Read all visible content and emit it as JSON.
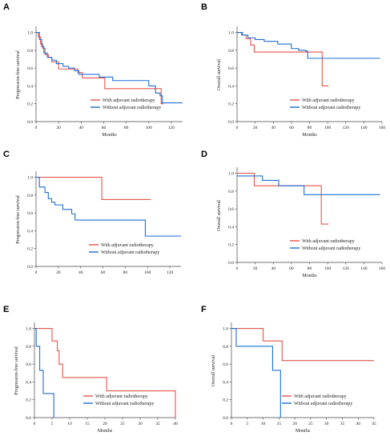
{
  "colors": {
    "with": "#e8534a",
    "without": "#1f6fd6"
  },
  "chart_data": [
    {
      "type": "line",
      "panel": "A",
      "ylabel": "Progression-free survival",
      "xlabel": "Months",
      "xlim": [
        0,
        130
      ],
      "ylim": [
        0,
        1.05
      ],
      "xticks": [
        0,
        20,
        40,
        60,
        80,
        100,
        120
      ],
      "yticks": [
        0.0,
        0.2,
        0.4,
        0.6,
        0.8,
        1.0
      ],
      "legend_position": "bottom-right",
      "series": [
        {
          "name": "With adjuvant radiotherapy",
          "color_key": "with",
          "step": true,
          "points": [
            [
              0,
              1.0
            ],
            [
              2,
              0.95
            ],
            [
              4,
              0.87
            ],
            [
              6,
              0.82
            ],
            [
              8,
              0.75
            ],
            [
              11,
              0.72
            ],
            [
              14,
              0.67
            ],
            [
              20,
              0.59
            ],
            [
              34,
              0.59
            ],
            [
              37,
              0.55
            ],
            [
              41,
              0.49
            ],
            [
              58,
              0.49
            ],
            [
              61,
              0.37
            ],
            [
              108,
              0.37
            ],
            [
              111,
              0.2
            ],
            [
              113,
              0.2
            ]
          ]
        },
        {
          "name": "Without adjuvant radiotherapy",
          "color_key": "without",
          "step": true,
          "points": [
            [
              0,
              1.0
            ],
            [
              3,
              0.92
            ],
            [
              5,
              0.84
            ],
            [
              7,
              0.77
            ],
            [
              10,
              0.72
            ],
            [
              14,
              0.69
            ],
            [
              18,
              0.65
            ],
            [
              24,
              0.62
            ],
            [
              29,
              0.6
            ],
            [
              34,
              0.57
            ],
            [
              38,
              0.53
            ],
            [
              56,
              0.5
            ],
            [
              68,
              0.46
            ],
            [
              98,
              0.46
            ],
            [
              100,
              0.4
            ],
            [
              106,
              0.32
            ],
            [
              110,
              0.29
            ],
            [
              112,
              0.21
            ],
            [
              130,
              0.21
            ]
          ]
        }
      ]
    },
    {
      "type": "line",
      "panel": "B",
      "ylabel": "Overall survival",
      "xlabel": "Months",
      "xlim": [
        0,
        160
      ],
      "ylim": [
        0,
        1.05
      ],
      "xticks": [
        0,
        20,
        40,
        60,
        80,
        100,
        120,
        140,
        160
      ],
      "yticks": [
        0.0,
        0.2,
        0.4,
        0.6,
        0.8,
        1.0
      ],
      "legend_position": "bottom-right",
      "series": [
        {
          "name": "With adjuvant radiotherapy",
          "color_key": "with",
          "step": true,
          "points": [
            [
              0,
              1.0
            ],
            [
              5,
              0.97
            ],
            [
              10,
              0.93
            ],
            [
              15,
              0.86
            ],
            [
              19,
              0.78
            ],
            [
              92,
              0.78
            ],
            [
              94,
              0.4
            ],
            [
              101,
              0.4
            ]
          ]
        },
        {
          "name": "Without adjuvant radiotherapy",
          "color_key": "without",
          "step": true,
          "points": [
            [
              0,
              1.0
            ],
            [
              6,
              0.97
            ],
            [
              12,
              0.94
            ],
            [
              20,
              0.92
            ],
            [
              30,
              0.9
            ],
            [
              45,
              0.87
            ],
            [
              60,
              0.82
            ],
            [
              68,
              0.8
            ],
            [
              76,
              0.79
            ],
            [
              78,
              0.71
            ],
            [
              158,
              0.71
            ]
          ]
        }
      ]
    },
    {
      "type": "line",
      "panel": "C",
      "ylabel": "Progression-free survival",
      "xlabel": "",
      "xlim": [
        0,
        130
      ],
      "ylim": [
        0,
        1.05
      ],
      "xticks": [
        0,
        20,
        40,
        60,
        80,
        100,
        120
      ],
      "yticks": [
        0.0,
        0.2,
        0.4,
        0.6,
        0.8,
        1.0
      ],
      "legend_position": "bottom-right",
      "series": [
        {
          "name": "With adjuvant radiotherapy",
          "color_key": "with",
          "step": true,
          "points": [
            [
              0,
              1.0
            ],
            [
              58,
              1.0
            ],
            [
              59,
              0.75
            ],
            [
              103,
              0.75
            ]
          ]
        },
        {
          "name": "Without adjuvant radiotherapy",
          "color_key": "without",
          "step": true,
          "points": [
            [
              0,
              1.0
            ],
            [
              3,
              0.89
            ],
            [
              8,
              0.83
            ],
            [
              11,
              0.76
            ],
            [
              14,
              0.72
            ],
            [
              17,
              0.69
            ],
            [
              24,
              0.64
            ],
            [
              32,
              0.59
            ],
            [
              35,
              0.52
            ],
            [
              97,
              0.52
            ],
            [
              98,
              0.34
            ],
            [
              130,
              0.34
            ]
          ]
        }
      ]
    },
    {
      "type": "line",
      "panel": "D",
      "ylabel": "Overall survival",
      "xlabel": "Months",
      "xlim": [
        0,
        160
      ],
      "ylim": [
        0,
        1.05
      ],
      "xticks": [
        0,
        20,
        40,
        60,
        80,
        100,
        120,
        140,
        160
      ],
      "yticks": [
        0.0,
        0.2,
        0.4,
        0.6,
        0.8,
        1.0
      ],
      "legend_position": "bottom-right",
      "series": [
        {
          "name": "With adjuvant radiotherapy",
          "color_key": "with",
          "step": true,
          "points": [
            [
              0,
              1.0
            ],
            [
              18,
              1.0
            ],
            [
              19,
              0.86
            ],
            [
              90,
              0.86
            ],
            [
              93,
              0.43
            ],
            [
              101,
              0.43
            ]
          ]
        },
        {
          "name": "Without adjuvant radiotherapy",
          "color_key": "without",
          "step": true,
          "points": [
            [
              0,
              0.97
            ],
            [
              26,
              0.97
            ],
            [
              28,
              0.92
            ],
            [
              44,
              0.92
            ],
            [
              46,
              0.86
            ],
            [
              72,
              0.86
            ],
            [
              74,
              0.76
            ],
            [
              158,
              0.76
            ]
          ]
        }
      ]
    },
    {
      "type": "line",
      "panel": "E",
      "ylabel": "Progression-free survival",
      "xlabel": "Months",
      "xlim": [
        0,
        40
      ],
      "ylim": [
        0,
        1.05
      ],
      "xticks": [
        0,
        5,
        10,
        15,
        20,
        25,
        30,
        35,
        40
      ],
      "yticks": [
        0.0,
        0.2,
        0.4,
        0.6,
        0.8,
        1.0
      ],
      "legend_position": "bottom-right",
      "series": [
        {
          "name": "With adjuvant radiotherapy",
          "color_key": "with",
          "step": true,
          "points": [
            [
              0,
              1.0
            ],
            [
              4,
              1.0
            ],
            [
              5,
              0.86
            ],
            [
              6,
              0.86
            ],
            [
              6.5,
              0.75
            ],
            [
              7,
              0.6
            ],
            [
              8,
              0.45
            ],
            [
              20,
              0.45
            ],
            [
              20.5,
              0.3
            ],
            [
              39.5,
              0.3
            ],
            [
              40,
              0.0
            ]
          ]
        },
        {
          "name": "Without adjuvant radiotherapy",
          "color_key": "without",
          "step": true,
          "points": [
            [
              0,
              1.0
            ],
            [
              0.5,
              0.8
            ],
            [
              1.5,
              0.53
            ],
            [
              2.5,
              0.27
            ],
            [
              5,
              0.27
            ],
            [
              5.5,
              0.0
            ]
          ]
        }
      ]
    },
    {
      "type": "line",
      "panel": "F",
      "ylabel": "Overall survival",
      "xlabel": "Months",
      "xlim": [
        0,
        45
      ],
      "ylim": [
        0,
        1.05
      ],
      "xticks": [
        0,
        5,
        10,
        15,
        20,
        25,
        30,
        35,
        40,
        45
      ],
      "yticks": [
        0.0,
        0.2,
        0.4,
        0.6,
        0.8,
        1.0
      ],
      "legend_position": "bottom-right",
      "series": [
        {
          "name": "With adjuvant radiotherapy",
          "color_key": "with",
          "step": true,
          "points": [
            [
              0,
              1.0
            ],
            [
              9,
              1.0
            ],
            [
              10,
              0.86
            ],
            [
              15,
              0.86
            ],
            [
              16,
              0.64
            ],
            [
              45,
              0.64
            ]
          ]
        },
        {
          "name": "Without adjuvant radiotherapy",
          "color_key": "without",
          "step": true,
          "points": [
            [
              0,
              1.0
            ],
            [
              1.5,
              0.8
            ],
            [
              12,
              0.8
            ],
            [
              13,
              0.53
            ],
            [
              15,
              0.53
            ],
            [
              15.5,
              0.0
            ]
          ]
        }
      ]
    }
  ]
}
